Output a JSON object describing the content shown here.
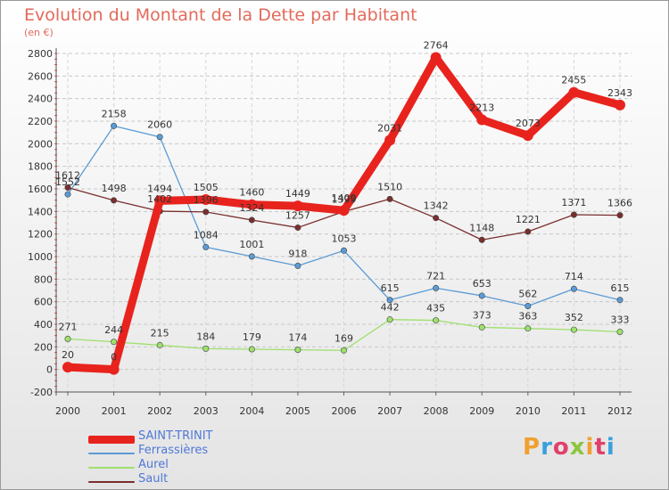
{
  "header": {
    "title": "Evolution du Montant de la Dette par Habitant",
    "subtitle": "(en €)"
  },
  "logo": {
    "text": "Proxiti",
    "colors": [
      "#f0a030",
      "#3aa0dc",
      "#e0406a",
      "#8cc63e",
      "#f0a030",
      "#e0406a",
      "#3aa0dc"
    ]
  },
  "chart_data": {
    "type": "line",
    "categories": [
      "2000",
      "2001",
      "2002",
      "2003",
      "2004",
      "2005",
      "2006",
      "2007",
      "2008",
      "2009",
      "2010",
      "2011",
      "2012"
    ],
    "ylim": [
      -200,
      2800
    ],
    "yticks": [
      -200,
      0,
      200,
      400,
      600,
      800,
      1000,
      1200,
      1400,
      1600,
      1800,
      2000,
      2200,
      2400,
      2600,
      2800
    ],
    "grid": "horizontal dashed",
    "legend_position": "bottom-left",
    "series": [
      {
        "name": "SAINT-TRINIT",
        "color": "#e8231e",
        "values": [
          20,
          0,
          1494,
          1505,
          1460,
          1449,
          1409,
          2031,
          2764,
          2213,
          2073,
          2455,
          2343
        ],
        "labels": [
          "20",
          "0",
          "1494",
          "1505",
          "1460",
          "1449",
          "1409",
          "2031",
          "2764",
          "2213",
          "2073",
          "2455",
          "2343"
        ]
      },
      {
        "name": "Ferrassières",
        "color": "#5b9bd5",
        "values": [
          1552,
          2158,
          2060,
          1084,
          1001,
          918,
          1053,
          615,
          721,
          653,
          562,
          714,
          615
        ],
        "labels": [
          "1552",
          "2158",
          "2060",
          "1084",
          "1001",
          "918",
          "1053",
          "615",
          "721",
          "653",
          "562",
          "714",
          "615"
        ]
      },
      {
        "name": "Aurel",
        "color": "#9ee06e",
        "values": [
          271,
          244,
          215,
          184,
          179,
          174,
          169,
          442,
          435,
          373,
          363,
          352,
          333
        ],
        "labels": [
          "271",
          "244",
          "215",
          "184",
          "179",
          "174",
          "169",
          "442",
          "435",
          "373",
          "363",
          "352",
          "333"
        ]
      },
      {
        "name": "Sault",
        "color": "#7a2e2e",
        "values": [
          1612,
          1498,
          1402,
          1396,
          1324,
          1257,
          1399,
          1510,
          1342,
          1148,
          1221,
          1371,
          1366
        ],
        "labels": [
          "1612",
          "1498",
          "1402",
          "1396",
          "1324",
          "1257",
          "1399",
          "1510",
          "1342",
          "1148",
          "1221",
          "1371",
          "1366"
        ]
      }
    ]
  }
}
